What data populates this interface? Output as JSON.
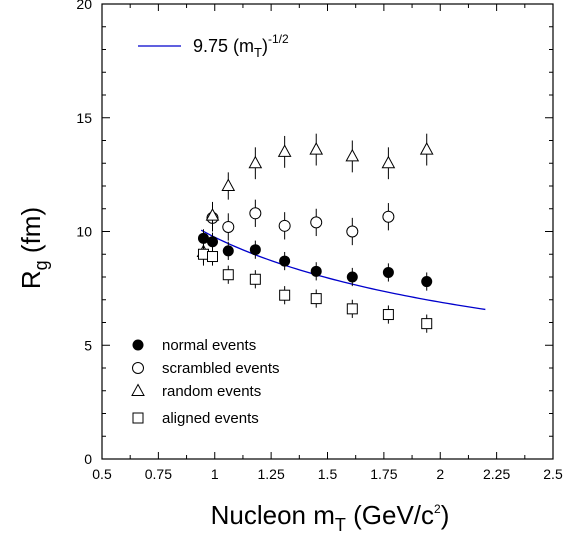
{
  "chart_data": {
    "type": "scatter",
    "title": "",
    "xlabel": {
      "main": "Nucleon m",
      "sub": "T",
      "unit_open": " (GeV/c",
      "sup": "2",
      "unit_close": ")"
    },
    "ylabel": {
      "main": "R",
      "sub": "g",
      "unit": " (fm)"
    },
    "xlim": [
      0.5,
      2.5
    ],
    "ylim": [
      0,
      20
    ],
    "xticks": [
      0.5,
      0.75,
      1,
      1.25,
      1.5,
      1.75,
      2,
      2.25,
      2.5
    ],
    "xtick_labels": [
      "0.5",
      "0.75",
      "1",
      "1.25",
      "1.5",
      "1.75",
      "2",
      "2.25",
      "2.5"
    ],
    "yticks": [
      0,
      5,
      10,
      15,
      20
    ],
    "ytick_labels": [
      "0",
      "5",
      "10",
      "15",
      "20"
    ],
    "grid": false,
    "legend_position": "bottom-left",
    "fit": {
      "label": {
        "coef": "9.75 (m",
        "sub": "T",
        "close": ")",
        "sup": "-1/2"
      },
      "coefficient": 9.75,
      "exponent": -0.5,
      "x_range": [
        0.94,
        2.2
      ],
      "color": "#0000cc"
    },
    "series": [
      {
        "name": "normal events",
        "marker": "filled-circle",
        "x": [
          0.95,
          0.99,
          1.06,
          1.18,
          1.31,
          1.45,
          1.61,
          1.77,
          1.94
        ],
        "y": [
          9.7,
          9.55,
          9.15,
          9.2,
          8.7,
          8.25,
          8.0,
          8.2,
          7.8
        ],
        "err": [
          0.4,
          0.4,
          0.4,
          0.4,
          0.4,
          0.4,
          0.4,
          0.4,
          0.4
        ]
      },
      {
        "name": "scrambled events",
        "marker": "open-circle",
        "x": [
          0.99,
          1.06,
          1.18,
          1.31,
          1.45,
          1.61,
          1.77
        ],
        "y": [
          10.6,
          10.2,
          10.8,
          10.25,
          10.4,
          10.0,
          10.65
        ],
        "err": [
          0.6,
          0.6,
          0.6,
          0.6,
          0.6,
          0.6,
          0.6
        ]
      },
      {
        "name": "random events",
        "marker": "open-triangle",
        "x": [
          0.95,
          0.99,
          1.06,
          1.18,
          1.31,
          1.45,
          1.61,
          1.77,
          1.94
        ],
        "y": [
          9.1,
          10.7,
          12.0,
          13.0,
          13.5,
          13.6,
          13.3,
          13.0,
          13.6
        ],
        "err": [
          0.6,
          0.6,
          0.6,
          0.7,
          0.7,
          0.7,
          0.7,
          0.7,
          0.7
        ]
      },
      {
        "name": "aligned events",
        "marker": "open-square",
        "x": [
          0.95,
          0.99,
          1.06,
          1.18,
          1.31,
          1.45,
          1.61,
          1.77,
          1.94
        ],
        "y": [
          9.0,
          8.9,
          8.1,
          7.9,
          7.2,
          7.05,
          6.6,
          6.35,
          5.95
        ],
        "err": [
          0.4,
          0.4,
          0.4,
          0.4,
          0.4,
          0.4,
          0.4,
          0.4,
          0.4
        ]
      }
    ]
  }
}
